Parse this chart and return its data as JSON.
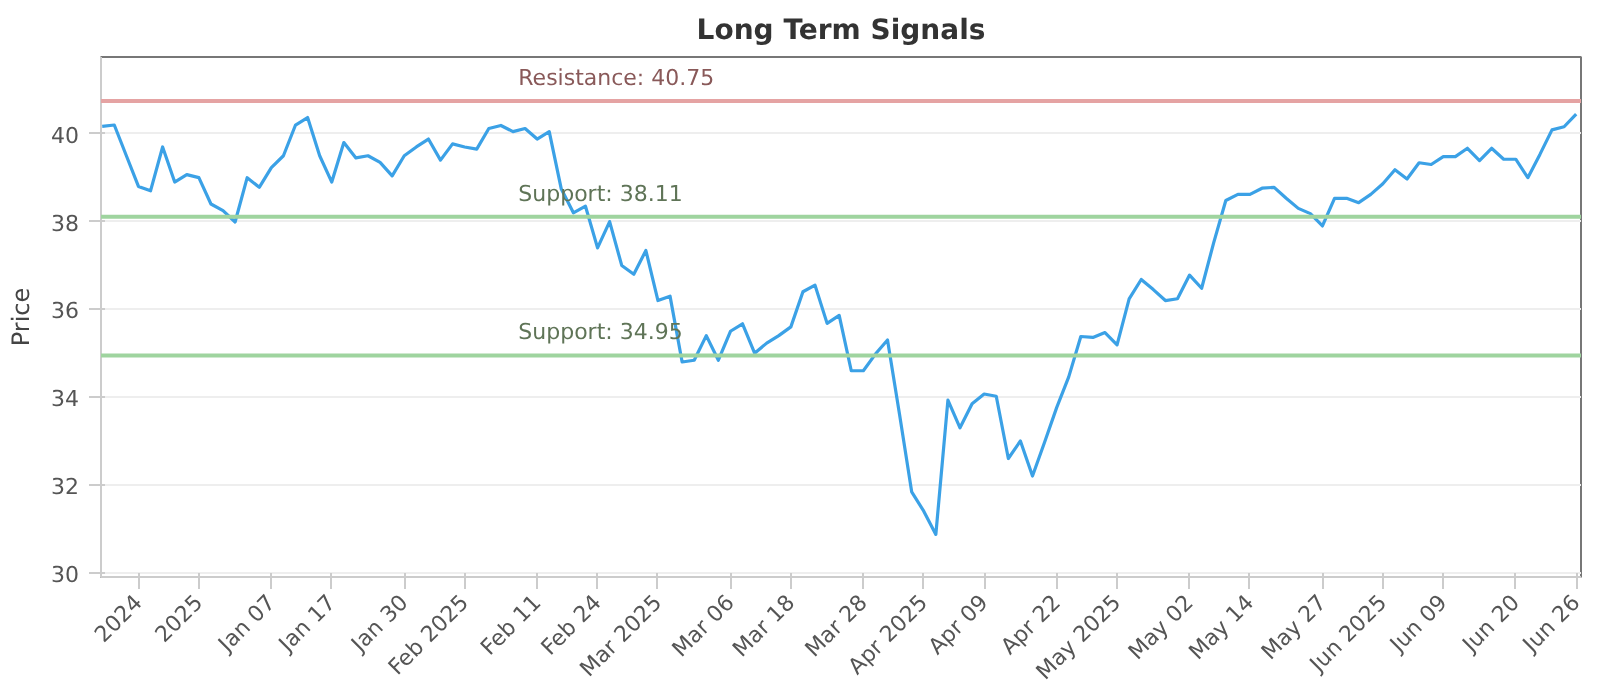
{
  "chart_data": {
    "type": "line",
    "title": "Long Term Signals",
    "ylabel": "Price",
    "categories": [
      null,
      null,
      null,
      "2024",
      null,
      null,
      null,
      null,
      "2025",
      null,
      null,
      null,
      null,
      null,
      "Jan 07",
      null,
      null,
      null,
      null,
      "Jan 17",
      null,
      null,
      null,
      null,
      null,
      "Jan 30",
      null,
      null,
      null,
      null,
      "Feb 2025",
      null,
      null,
      null,
      null,
      null,
      "Feb 11",
      null,
      null,
      null,
      null,
      "Feb 24",
      null,
      null,
      null,
      null,
      "Mar 2025",
      null,
      null,
      null,
      null,
      null,
      "Mar 06",
      null,
      null,
      null,
      null,
      "Mar 18",
      null,
      null,
      null,
      null,
      null,
      "Mar 28",
      null,
      null,
      null,
      null,
      "Apr 2025",
      null,
      null,
      null,
      null,
      "Apr 09",
      null,
      null,
      null,
      null,
      null,
      "Apr 22",
      null,
      null,
      null,
      null,
      "May 2025",
      null,
      null,
      null,
      null,
      null,
      "May 02",
      null,
      null,
      null,
      null,
      "May 14",
      null,
      null,
      null,
      null,
      null,
      "May 27",
      null,
      null,
      null,
      null,
      "Jun 2025",
      null,
      null,
      null,
      null,
      "Jun 09",
      null,
      null,
      null,
      null,
      null,
      "Jun 20",
      null,
      null,
      null,
      null,
      "Jun 26"
    ],
    "series": [
      {
        "color": "#3ba1e6",
        "values": [
          40.17,
          40.2,
          39.5,
          38.8,
          38.7,
          39.7,
          38.9,
          39.07,
          39.0,
          38.4,
          38.25,
          37.99,
          39.0,
          38.78,
          39.23,
          39.5,
          40.2,
          40.37,
          39.5,
          38.9,
          39.8,
          39.45,
          39.5,
          39.35,
          39.04,
          39.5,
          39.7,
          39.88,
          39.4,
          39.77,
          39.7,
          39.65,
          40.12,
          40.19,
          40.05,
          40.12,
          39.88,
          40.05,
          38.74,
          38.2,
          38.35,
          37.4,
          38.0,
          37.0,
          36.8,
          37.34,
          36.2,
          36.3,
          34.8,
          34.84,
          35.4,
          34.84,
          35.5,
          35.67,
          35.0,
          35.23,
          35.4,
          35.6,
          36.4,
          36.55,
          35.68,
          35.86,
          34.6,
          34.6,
          34.98,
          35.3,
          33.6,
          31.84,
          31.4,
          30.87,
          33.93,
          33.3,
          33.85,
          34.07,
          34.02,
          32.6,
          33.0,
          32.2,
          32.97,
          33.76,
          34.46,
          35.38,
          35.36,
          35.47,
          35.19,
          36.24,
          36.68,
          36.45,
          36.2,
          36.24,
          36.78,
          36.48,
          37.52,
          38.48,
          38.62,
          38.62,
          38.76,
          38.78,
          38.53,
          38.3,
          38.18,
          37.9,
          38.53,
          38.53,
          38.43,
          38.62,
          38.86,
          39.18,
          38.97,
          39.34,
          39.3,
          39.48,
          39.48,
          39.67,
          39.39,
          39.67,
          39.42,
          39.42,
          39.0,
          39.53,
          40.09,
          40.16,
          40.45
        ]
      }
    ],
    "ylim": [
      29.9,
      41.75
    ],
    "yticks": [
      30,
      32,
      34,
      36,
      38,
      40
    ],
    "ref_lines": [
      {
        "axis": "y",
        "value": 40.75,
        "label": "Resistance: 40.75",
        "color": "#e5a3a3"
      },
      {
        "axis": "y",
        "value": 38.11,
        "label": "Support: 38.11",
        "color": "#9fd49f"
      },
      {
        "axis": "y",
        "value": 34.95,
        "label": "Support: 34.95",
        "color": "#9fd49f"
      }
    ],
    "grid": "y",
    "marker": "none",
    "line_style": "solid"
  }
}
